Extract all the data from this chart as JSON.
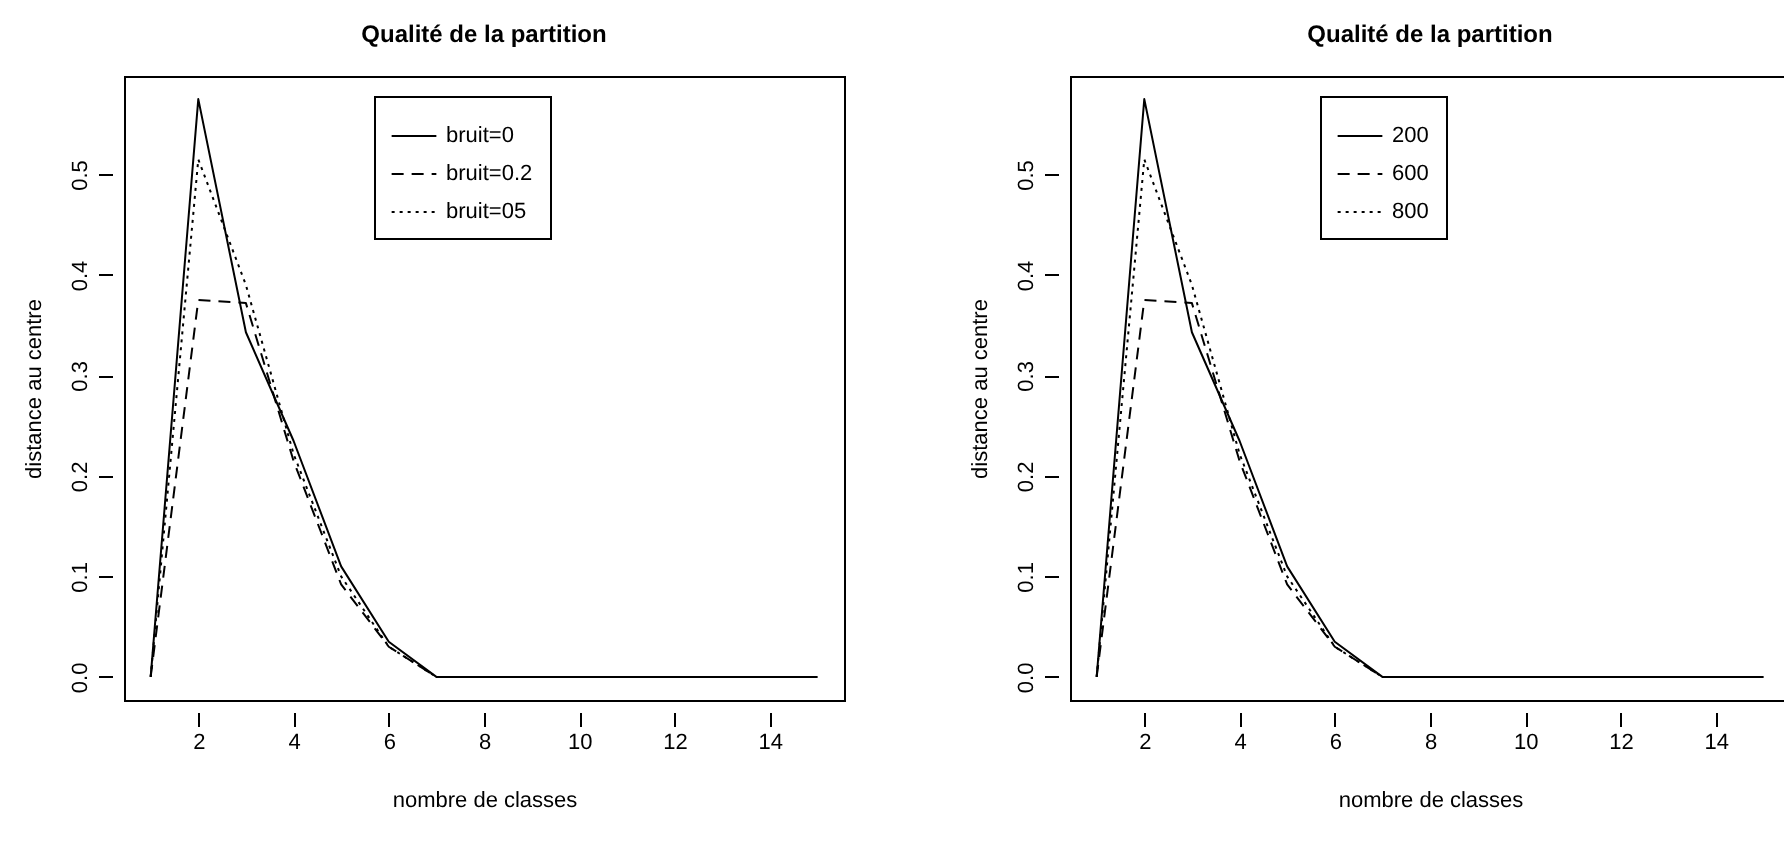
{
  "chart_data": [
    {
      "type": "line",
      "title": "Qualité de la partition",
      "xlabel": "nombre de classes",
      "ylabel": "distance au centre",
      "x": [
        1,
        2,
        3,
        4,
        5,
        6,
        7,
        8,
        9,
        10,
        11,
        12,
        13,
        14,
        15
      ],
      "xlim": [
        0.44,
        15.56
      ],
      "ylim": [
        -0.023,
        0.598
      ],
      "xticks": [
        2,
        4,
        6,
        8,
        10,
        12,
        14
      ],
      "yticks": [
        {
          "value": 0,
          "label": "0.0"
        },
        0.1,
        0.2,
        0.3,
        0.4,
        0.5
      ],
      "legend": "top",
      "grid": false,
      "marker": "none",
      "series": [
        {
          "name": "bruit=0",
          "color": "#000000",
          "line_style": "solid",
          "values": [
            0,
            0.575,
            0.343,
            0.235,
            0.11,
            0.035,
            0,
            0,
            0,
            0,
            0,
            0,
            0,
            0,
            0
          ]
        },
        {
          "name": "bruit=0.2",
          "color": "#000000",
          "line_style": "dashed",
          "values": [
            0,
            0.375,
            0.372,
            0.215,
            0.092,
            0.03,
            0,
            0,
            0,
            0,
            0,
            0,
            0,
            0,
            0
          ]
        },
        {
          "name": "bruit=05",
          "color": "#000000",
          "line_style": "dotted",
          "values": [
            0,
            0.515,
            0.39,
            0.222,
            0.1,
            0.03,
            0,
            0,
            0,
            0,
            0,
            0,
            0,
            0,
            0
          ]
        }
      ]
    },
    {
      "type": "line",
      "title": "Qualité de la partition",
      "xlabel": "nombre de classes",
      "ylabel": "distance au centre",
      "x": [
        1,
        2,
        3,
        4,
        5,
        6,
        7,
        8,
        9,
        10,
        11,
        12,
        13,
        14,
        15
      ],
      "xlim": [
        0.44,
        15.56
      ],
      "ylim": [
        -0.023,
        0.598
      ],
      "xticks": [
        2,
        4,
        6,
        8,
        10,
        12,
        14
      ],
      "yticks": [
        {
          "value": 0,
          "label": "0.0"
        },
        0.1,
        0.2,
        0.3,
        0.4,
        0.5
      ],
      "legend": "top",
      "grid": false,
      "marker": "none",
      "series": [
        {
          "name": "200",
          "color": "#000000",
          "line_style": "solid",
          "values": [
            0,
            0.575,
            0.343,
            0.235,
            0.11,
            0.035,
            0,
            0,
            0,
            0,
            0,
            0,
            0,
            0,
            0
          ]
        },
        {
          "name": "600",
          "color": "#000000",
          "line_style": "dashed",
          "values": [
            0,
            0.375,
            0.372,
            0.215,
            0.092,
            0.03,
            0,
            0,
            0,
            0,
            0,
            0,
            0,
            0,
            0
          ]
        },
        {
          "name": "800",
          "color": "#000000",
          "line_style": "dotted",
          "values": [
            0,
            0.515,
            0.39,
            0.222,
            0.1,
            0.03,
            0,
            0,
            0,
            0,
            0,
            0,
            0,
            0,
            0
          ]
        }
      ]
    }
  ]
}
